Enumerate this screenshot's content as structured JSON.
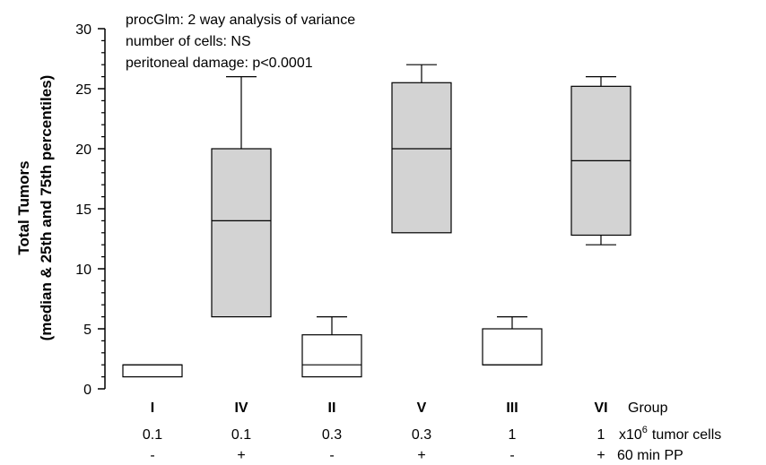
{
  "chart_data": {
    "type": "box",
    "ylabel_line1": "Total Tumors",
    "ylabel_line2": "(median & 25th and 75th percentiles)",
    "ylim": [
      0,
      30
    ],
    "yticks": [
      0,
      5,
      10,
      15,
      20,
      25,
      30
    ],
    "annotations": [
      "procGlm: 2 way analysis of variance",
      "number of cells: NS",
      "peritoneal damage: p<0.0001"
    ],
    "row_headers": {
      "group": "Group",
      "cells_prefix": "x10",
      "cells_exp": "6",
      "cells_suffix": "tumor cells",
      "pp": "60 min PP"
    },
    "colors": {
      "filled": "#d3d3d3",
      "empty": "#ffffff",
      "stroke": "#000000"
    },
    "boxes": [
      {
        "group": "I",
        "cells": "0.1",
        "pp": "-",
        "filled": false,
        "whisker_low": 1,
        "q1": 1,
        "median": 2,
        "q3": 2,
        "whisker_high": 2
      },
      {
        "group": "IV",
        "cells": "0.1",
        "pp": "+",
        "filled": true,
        "whisker_low": 6,
        "q1": 6,
        "median": 14,
        "q3": 20,
        "whisker_high": 26
      },
      {
        "group": "II",
        "cells": "0.3",
        "pp": "-",
        "filled": false,
        "whisker_low": 1,
        "q1": 1,
        "median": 2,
        "q3": 4.5,
        "whisker_high": 6
      },
      {
        "group": "V",
        "cells": "0.3",
        "pp": "+",
        "filled": true,
        "whisker_low": 13,
        "q1": 13,
        "median": 20,
        "q3": 25.5,
        "whisker_high": 27
      },
      {
        "group": "III",
        "cells": "1",
        "pp": "-",
        "filled": false,
        "whisker_low": 2,
        "q1": 2,
        "median": 2,
        "q3": 5,
        "whisker_high": 6
      },
      {
        "group": "VI",
        "cells": "1",
        "pp": "+",
        "filled": true,
        "whisker_low": 12,
        "q1": 12.8,
        "median": 19,
        "q3": 25.2,
        "whisker_high": 26
      }
    ]
  }
}
